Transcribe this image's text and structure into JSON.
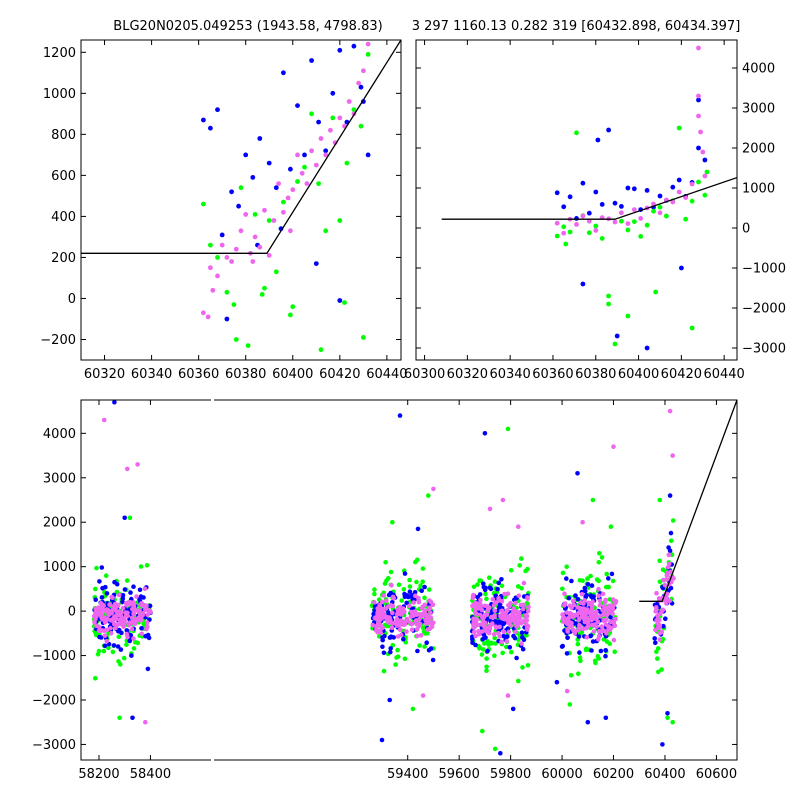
{
  "figure": {
    "title_left": "BLG20N0205.049253 (1943.58, 4798.83)",
    "title_right": "3 297 1160.13 0.282 319 [60432.898, 60434.397]"
  },
  "colors": {
    "series_a": "#0000ff",
    "series_b": "#00ff00",
    "series_c": "#ee66ee",
    "model": "#000000"
  },
  "chart_data": [
    {
      "type": "scatter",
      "panel": "top-left",
      "xlim": [
        60310,
        60446
      ],
      "ylim": [
        -300,
        1260
      ],
      "xticks": [
        60320,
        60340,
        60360,
        60380,
        60400,
        60420,
        60440
      ],
      "xtick_labels": [
        "60320",
        "60340",
        "60360",
        "60380",
        "60400",
        "60420",
        "60440"
      ],
      "yticks": [
        -200,
        0,
        200,
        400,
        600,
        800,
        1000,
        1200
      ],
      "ytick_labels": [
        "−200",
        "0",
        "200",
        "400",
        "600",
        "800",
        "1000",
        "1200"
      ],
      "ytick_side": "left",
      "model_line": {
        "x": [
          60310,
          60389,
          60446
        ],
        "y": [
          220,
          220,
          1260
        ]
      },
      "series": [
        {
          "color_key": "series_a",
          "x": [
            60362,
            60365,
            60368,
            60370,
            60374,
            60377,
            60380,
            60383,
            60386,
            60390,
            60393,
            60396,
            60399,
            60402,
            60405,
            60408,
            60411,
            60414,
            60417,
            60420,
            60423,
            60426,
            60429,
            60432,
            60372,
            60385,
            60395,
            60410,
            60420,
            60430
          ],
          "y": [
            870,
            830,
            920,
            310,
            520,
            450,
            700,
            590,
            780,
            660,
            540,
            1100,
            630,
            940,
            700,
            1160,
            860,
            720,
            1000,
            1210,
            860,
            1230,
            1030,
            700,
            -100,
            260,
            340,
            170,
            -10,
            960
          ]
        },
        {
          "color_key": "series_b",
          "x": [
            60362,
            60365,
            60368,
            60372,
            60375,
            60378,
            60381,
            60384,
            60387,
            60390,
            60393,
            60396,
            60399,
            60402,
            60405,
            60408,
            60411,
            60414,
            60417,
            60420,
            60423,
            60426,
            60429,
            60432,
            60376,
            60388,
            60400,
            60412,
            60422,
            60430
          ],
          "y": [
            460,
            260,
            200,
            30,
            -30,
            540,
            -230,
            410,
            20,
            380,
            130,
            470,
            -80,
            570,
            640,
            900,
            560,
            330,
            880,
            380,
            660,
            920,
            840,
            1190,
            -200,
            50,
            -40,
            -250,
            -20,
            -190
          ]
        },
        {
          "color_key": "series_c",
          "x": [
            60362,
            60364,
            60366,
            60368,
            60370,
            60372,
            60374,
            60376,
            60378,
            60380,
            60382,
            60384,
            60386,
            60388,
            60390,
            60392,
            60394,
            60396,
            60398,
            60400,
            60402,
            60404,
            60406,
            60408,
            60410,
            60412,
            60414,
            60416,
            60418,
            60420,
            60422,
            60424,
            60426,
            60428,
            60430,
            60432,
            60365,
            60383,
            60399
          ],
          "y": [
            -70,
            -90,
            40,
            110,
            260,
            200,
            180,
            240,
            330,
            410,
            220,
            300,
            250,
            430,
            210,
            380,
            560,
            420,
            490,
            530,
            700,
            610,
            560,
            720,
            650,
            780,
            700,
            820,
            760,
            880,
            840,
            960,
            900,
            1050,
            1110,
            1240,
            150,
            180,
            330
          ]
        }
      ]
    },
    {
      "type": "scatter",
      "panel": "top-right",
      "xlim": [
        60296,
        60446
      ],
      "ylim": [
        -3300,
        4700
      ],
      "xticks": [
        60300,
        60320,
        60340,
        60360,
        60380,
        60400,
        60420,
        60440
      ],
      "xtick_labels": [
        "60300",
        "60320",
        "60340",
        "60360",
        "60380",
        "60400",
        "60420",
        "60440"
      ],
      "yticks": [
        -3000,
        -2000,
        -1000,
        0,
        1000,
        2000,
        3000,
        4000
      ],
      "ytick_labels": [
        "−3000",
        "−2000",
        "−1000",
        "0",
        "1000",
        "2000",
        "3000",
        "4000"
      ],
      "ytick_side": "right",
      "model_line": {
        "x": [
          60308,
          60389,
          60446
        ],
        "y": [
          220,
          220,
          1260
        ]
      },
      "series": [
        {
          "color_key": "series_a",
          "x": [
            60362,
            60365,
            60368,
            60371,
            60374,
            60377,
            60380,
            60383,
            60386,
            60389,
            60392,
            60395,
            60398,
            60401,
            60404,
            60407,
            60410,
            60413,
            60416,
            60419,
            60422,
            60425,
            60428,
            60431,
            60374,
            60390,
            60404,
            60420,
            60381,
            60428
          ],
          "y": [
            880,
            530,
            780,
            240,
            1120,
            370,
            900,
            590,
            2450,
            620,
            540,
            1000,
            980,
            460,
            940,
            520,
            800,
            690,
            1020,
            1200,
            790,
            1140,
            2000,
            1700,
            -1400,
            -2700,
            -3000,
            -1000,
            2200,
            3200
          ]
        },
        {
          "color_key": "series_b",
          "x": [
            60362,
            60365,
            60368,
            60371,
            60374,
            60377,
            60380,
            60383,
            60386,
            60389,
            60392,
            60395,
            60398,
            60401,
            60404,
            60407,
            60410,
            60413,
            60416,
            60419,
            60422,
            60425,
            60428,
            60431,
            60386,
            60395,
            60408,
            60425,
            60366,
            60432
          ],
          "y": [
            -200,
            30,
            -100,
            2380,
            310,
            -120,
            50,
            -260,
            -1700,
            -2900,
            170,
            -50,
            160,
            -210,
            70,
            420,
            520,
            300,
            680,
            2500,
            220,
            670,
            1150,
            820,
            -1900,
            -2200,
            -1600,
            -2500,
            -400,
            1400
          ]
        },
        {
          "color_key": "series_c",
          "x": [
            60362,
            60365,
            60368,
            60371,
            60374,
            60377,
            60380,
            60383,
            60386,
            60389,
            60392,
            60395,
            60398,
            60401,
            60404,
            60407,
            60410,
            60413,
            60416,
            60419,
            60422,
            60425,
            60428,
            60431,
            60428,
            60428,
            60429,
            60430
          ],
          "y": [
            120,
            -130,
            220,
            90,
            300,
            170,
            -60,
            260,
            230,
            150,
            380,
            110,
            460,
            240,
            500,
            600,
            380,
            700,
            650,
            900,
            760,
            1100,
            4500,
            1300,
            3300,
            2800,
            2400,
            1900
          ]
        }
      ]
    },
    {
      "type": "scatter",
      "panel": "bottom",
      "xlim": [
        58130,
        60680
      ],
      "ylim": [
        -3350,
        4750
      ],
      "xticks": [
        58200,
        58400,
        59400,
        59600,
        59800,
        60000,
        60200,
        60400,
        60600
      ],
      "xtick_labels": [
        "58200",
        "58400",
        "59400",
        "59600",
        "59800",
        "60000",
        "60200",
        "60400",
        "60600"
      ],
      "yticks": [
        -3000,
        -2000,
        -1000,
        0,
        1000,
        2000,
        3000,
        4000
      ],
      "ytick_labels": [
        "−3000",
        "−2000",
        "−1000",
        "0",
        "1000",
        "2000",
        "3000",
        "4000"
      ],
      "ytick_side": "left",
      "model_line": {
        "x": [
          60300,
          60389,
          60680
        ],
        "y": [
          220,
          220,
          4750
        ]
      },
      "segments": [
        [
          58180,
          58400
        ],
        [
          59260,
          59500
        ],
        [
          59650,
          59870
        ],
        [
          60000,
          60210
        ],
        [
          60360,
          60435
        ]
      ],
      "outliers": [
        {
          "color_key": "series_a",
          "x": [
            58260,
            58390,
            58330,
            59370,
            59440,
            59300,
            59700,
            59810,
            60060,
            60170,
            59980,
            60390,
            60420,
            58300,
            59330,
            59760,
            60100,
            60410
          ],
          "y": [
            4700,
            -1300,
            -2400,
            4400,
            1850,
            -2900,
            4000,
            -2200,
            3100,
            -2400,
            -1600,
            -3000,
            2600,
            2100,
            -2000,
            -3200,
            -2500,
            -2300
          ]
        },
        {
          "color_key": "series_b",
          "x": [
            58320,
            58200,
            59420,
            59340,
            59790,
            59690,
            60120,
            60030,
            60380,
            60410,
            58280,
            59480,
            59740,
            60190,
            60430
          ],
          "y": [
            2100,
            -900,
            -2200,
            2000,
            4100,
            -2700,
            2500,
            -2100,
            2500,
            -2400,
            -2400,
            2600,
            -3100,
            1900,
            -2500
          ]
        },
        {
          "color_key": "series_c",
          "x": [
            58220,
            58350,
            58310,
            59500,
            59460,
            59770,
            59720,
            59830,
            60080,
            60020,
            60200,
            60420,
            60430,
            58380,
            59790
          ],
          "y": [
            4300,
            3300,
            3200,
            2750,
            -1900,
            2500,
            2300,
            1900,
            2000,
            -1800,
            3700,
            4500,
            3500,
            -2500,
            -1900
          ]
        }
      ]
    }
  ]
}
